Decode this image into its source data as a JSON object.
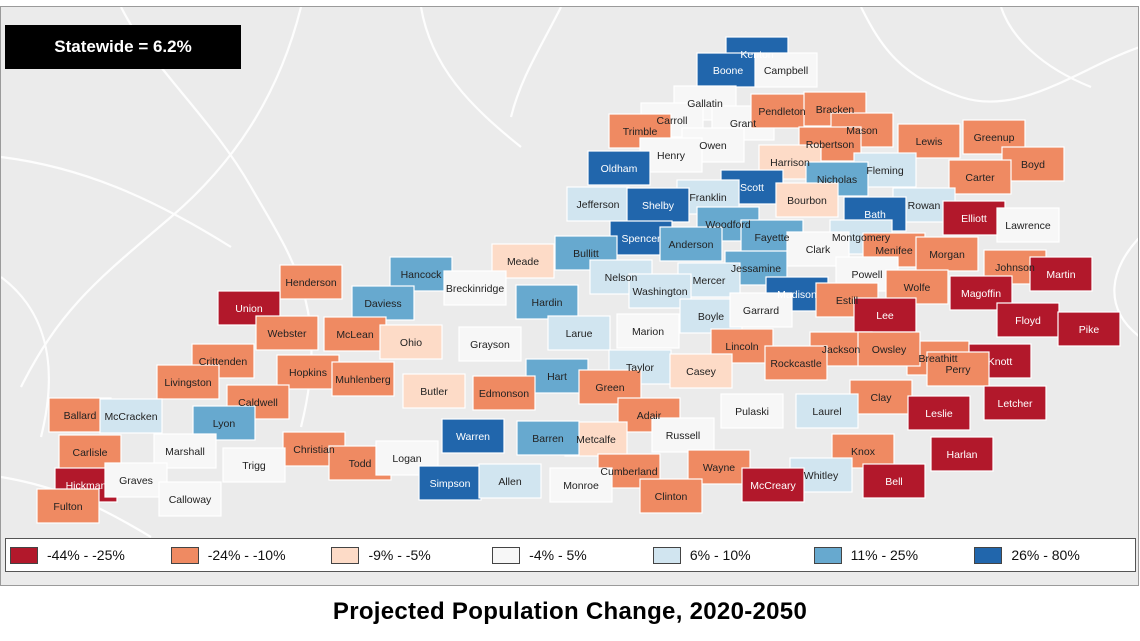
{
  "statewide": "Statewide = 6.2%",
  "title": "Projected Population Change, 2020-2050",
  "legend": [
    {
      "label": "-44% - -25%",
      "color": "#b2182b"
    },
    {
      "label": "-24% - -10%",
      "color": "#ef8a62"
    },
    {
      "label": "-9% - -5%",
      "color": "#fddbc7"
    },
    {
      "label": "-4% - 5%",
      "color": "#f7f7f7"
    },
    {
      "label": "6% - 10%",
      "color": "#d1e5f0"
    },
    {
      "label": "11% - 25%",
      "color": "#67a9cf"
    },
    {
      "label": "26% - 80%",
      "color": "#2166ac"
    }
  ],
  "counties": [
    {
      "name": "Kenton",
      "class": 6
    },
    {
      "name": "Boone",
      "class": 6
    },
    {
      "name": "Campbell",
      "class": 3
    },
    {
      "name": "Gallatin",
      "class": 3
    },
    {
      "name": "Carroll",
      "class": 3
    },
    {
      "name": "Grant",
      "class": 3
    },
    {
      "name": "Pendleton",
      "class": 1
    },
    {
      "name": "Bracken",
      "class": 1
    },
    {
      "name": "Trimble",
      "class": 1
    },
    {
      "name": "Owen",
      "class": 3
    },
    {
      "name": "Mason",
      "class": 1
    },
    {
      "name": "Robertson",
      "class": 1
    },
    {
      "name": "Lewis",
      "class": 1
    },
    {
      "name": "Greenup",
      "class": 1
    },
    {
      "name": "Boyd",
      "class": 1
    },
    {
      "name": "Henry",
      "class": 3
    },
    {
      "name": "Harrison",
      "class": 2
    },
    {
      "name": "Fleming",
      "class": 4
    },
    {
      "name": "Carter",
      "class": 1
    },
    {
      "name": "Oldham",
      "class": 6
    },
    {
      "name": "Scott",
      "class": 6
    },
    {
      "name": "Nicholas",
      "class": 5
    },
    {
      "name": "Franklin",
      "class": 4
    },
    {
      "name": "Bourbon",
      "class": 2
    },
    {
      "name": "Rowan",
      "class": 4
    },
    {
      "name": "Elliott",
      "class": 0
    },
    {
      "name": "Jefferson",
      "class": 4
    },
    {
      "name": "Shelby",
      "class": 6
    },
    {
      "name": "Bath",
      "class": 6
    },
    {
      "name": "Lawrence",
      "class": 3
    },
    {
      "name": "Woodford",
      "class": 5
    },
    {
      "name": "Spencer",
      "class": 6
    },
    {
      "name": "Anderson",
      "class": 5
    },
    {
      "name": "Fayette",
      "class": 5
    },
    {
      "name": "Montgomery",
      "class": 4
    },
    {
      "name": "Clark",
      "class": 3
    },
    {
      "name": "Menifee",
      "class": 1
    },
    {
      "name": "Morgan",
      "class": 1
    },
    {
      "name": "Johnson",
      "class": 1
    },
    {
      "name": "Martin",
      "class": 0
    },
    {
      "name": "Bullitt",
      "class": 5
    },
    {
      "name": "Meade",
      "class": 2
    },
    {
      "name": "Jessamine",
      "class": 5
    },
    {
      "name": "Powell",
      "class": 3
    },
    {
      "name": "Henderson",
      "class": 1
    },
    {
      "name": "Hancock",
      "class": 5
    },
    {
      "name": "Breckinridge",
      "class": 3
    },
    {
      "name": "Nelson",
      "class": 4
    },
    {
      "name": "Mercer",
      "class": 4
    },
    {
      "name": "Wolfe",
      "class": 1
    },
    {
      "name": "Magoffin",
      "class": 0
    },
    {
      "name": "Union",
      "class": 0
    },
    {
      "name": "Daviess",
      "class": 5
    },
    {
      "name": "Hardin",
      "class": 5
    },
    {
      "name": "Washington",
      "class": 4
    },
    {
      "name": "Madison",
      "class": 6
    },
    {
      "name": "Estill",
      "class": 1
    },
    {
      "name": "Boyle",
      "class": 4
    },
    {
      "name": "Garrard",
      "class": 3
    },
    {
      "name": "Lee",
      "class": 0
    },
    {
      "name": "Floyd",
      "class": 0
    },
    {
      "name": "Webster",
      "class": 1
    },
    {
      "name": "McLean",
      "class": 1
    },
    {
      "name": "Grayson",
      "class": 3
    },
    {
      "name": "Larue",
      "class": 4
    },
    {
      "name": "Marion",
      "class": 3
    },
    {
      "name": "Pike",
      "class": 0
    },
    {
      "name": "Ohio",
      "class": 2
    },
    {
      "name": "Lincoln",
      "class": 1
    },
    {
      "name": "Breathitt",
      "class": 1
    },
    {
      "name": "Crittenden",
      "class": 1
    },
    {
      "name": "Jackson",
      "class": 1
    },
    {
      "name": "Owsley",
      "class": 1
    },
    {
      "name": "Knott",
      "class": 0
    },
    {
      "name": "Hopkins",
      "class": 1
    },
    {
      "name": "Hart",
      "class": 5
    },
    {
      "name": "Taylor",
      "class": 4
    },
    {
      "name": "Casey",
      "class": 2
    },
    {
      "name": "Rockcastle",
      "class": 1
    },
    {
      "name": "Perry",
      "class": 1
    },
    {
      "name": "Livingston",
      "class": 1
    },
    {
      "name": "Muhlenberg",
      "class": 1
    },
    {
      "name": "Butler",
      "class": 2
    },
    {
      "name": "Green",
      "class": 1
    },
    {
      "name": "Edmonson",
      "class": 1
    },
    {
      "name": "Caldwell",
      "class": 1
    },
    {
      "name": "Clay",
      "class": 1
    },
    {
      "name": "Letcher",
      "class": 0
    },
    {
      "name": "Ballard",
      "class": 1
    },
    {
      "name": "McCracken",
      "class": 4
    },
    {
      "name": "Lyon",
      "class": 5
    },
    {
      "name": "Adair",
      "class": 1
    },
    {
      "name": "Pulaski",
      "class": 3
    },
    {
      "name": "Laurel",
      "class": 4
    },
    {
      "name": "Leslie",
      "class": 0
    },
    {
      "name": "Warren",
      "class": 6
    },
    {
      "name": "Russell",
      "class": 3
    },
    {
      "name": "Metcalfe",
      "class": 2
    },
    {
      "name": "Barren",
      "class": 5
    },
    {
      "name": "Marshall",
      "class": 3
    },
    {
      "name": "Carlisle",
      "class": 1
    },
    {
      "name": "Christian",
      "class": 1
    },
    {
      "name": "Knox",
      "class": 1
    },
    {
      "name": "Harlan",
      "class": 0
    },
    {
      "name": "Todd",
      "class": 1
    },
    {
      "name": "Logan",
      "class": 3
    },
    {
      "name": "Trigg",
      "class": 3
    },
    {
      "name": "Wayne",
      "class": 1
    },
    {
      "name": "Bell",
      "class": 0
    },
    {
      "name": "Cumberland",
      "class": 1
    },
    {
      "name": "Whitley",
      "class": 4
    },
    {
      "name": "Hickman",
      "class": 0
    },
    {
      "name": "Graves",
      "class": 3
    },
    {
      "name": "Simpson",
      "class": 6
    },
    {
      "name": "Allen",
      "class": 4
    },
    {
      "name": "Monroe",
      "class": 3
    },
    {
      "name": "McCreary",
      "class": 0
    },
    {
      "name": "Clinton",
      "class": 1
    },
    {
      "name": "Calloway",
      "class": 3
    },
    {
      "name": "Fulton",
      "class": 1
    }
  ]
}
